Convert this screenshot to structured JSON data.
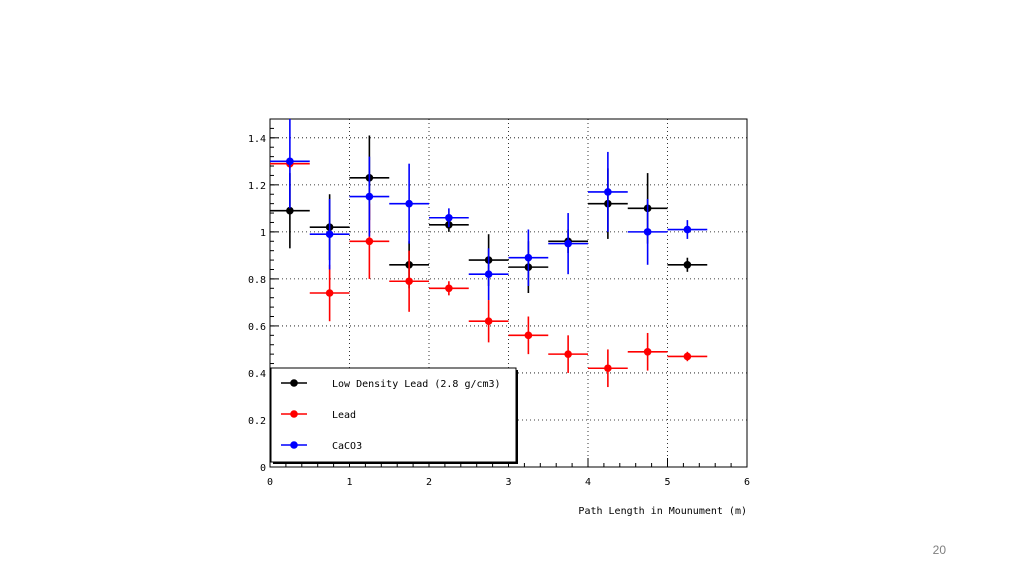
{
  "slide": {
    "page_number": "20"
  },
  "chart_data": {
    "type": "scatter",
    "title": "",
    "xlabel": "Path Length in Mounument (m)",
    "ylabel": "",
    "xlim": [
      0,
      6
    ],
    "ylim": [
      0,
      1.48
    ],
    "x_ticks": [
      "0",
      "1",
      "2",
      "3",
      "4",
      "5",
      "6"
    ],
    "y_ticks": [
      "0",
      "0.2",
      "0.4",
      "0.6",
      "0.8",
      "1",
      "1.2",
      "1.4"
    ],
    "grid": true,
    "legend_position": "bottom-left",
    "series": [
      {
        "name": "Low Density Lead (2.8 g/cm3)",
        "color": "#000000",
        "x": [
          0.25,
          0.75,
          1.25,
          1.75,
          2.25,
          2.75,
          3.25,
          3.75,
          4.25,
          4.75,
          5.25
        ],
        "xerr": [
          0.25,
          0.25,
          0.25,
          0.25,
          0.25,
          0.25,
          0.25,
          0.25,
          0.25,
          0.25,
          0.25
        ],
        "y": [
          1.09,
          1.02,
          1.23,
          0.86,
          1.03,
          0.88,
          0.85,
          0.96,
          1.12,
          1.1,
          0.86
        ],
        "yerr": [
          0.16,
          0.14,
          0.18,
          0.1,
          0.03,
          0.11,
          0.11,
          0.05,
          0.15,
          0.15,
          0.03
        ]
      },
      {
        "name": "Lead",
        "color": "#ff0000",
        "x": [
          0.25,
          0.75,
          1.25,
          1.75,
          2.25,
          2.75,
          3.25,
          3.75,
          4.25,
          4.75,
          5.25
        ],
        "xerr": [
          0.25,
          0.25,
          0.25,
          0.25,
          0.25,
          0.25,
          0.25,
          0.25,
          0.25,
          0.25,
          0.25
        ],
        "y": [
          1.29,
          0.74,
          0.96,
          0.79,
          0.76,
          0.62,
          0.56,
          0.48,
          0.42,
          0.49,
          0.47
        ],
        "yerr": [
          0.02,
          0.12,
          0.16,
          0.13,
          0.03,
          0.09,
          0.08,
          0.08,
          0.08,
          0.08,
          0.02
        ]
      },
      {
        "name": "CaCO3",
        "color": "#0000ff",
        "x": [
          0.25,
          0.75,
          1.25,
          1.75,
          2.25,
          2.75,
          3.25,
          3.75,
          4.25,
          4.75,
          5.25
        ],
        "xerr": [
          0.25,
          0.25,
          0.25,
          0.25,
          0.25,
          0.25,
          0.25,
          0.25,
          0.25,
          0.25,
          0.25
        ],
        "y": [
          1.3,
          0.99,
          1.15,
          1.12,
          1.06,
          0.82,
          0.89,
          0.95,
          1.17,
          1.0,
          1.01
        ],
        "yerr": [
          0.2,
          0.15,
          0.17,
          0.17,
          0.04,
          0.11,
          0.12,
          0.13,
          0.17,
          0.14,
          0.04
        ]
      }
    ]
  }
}
